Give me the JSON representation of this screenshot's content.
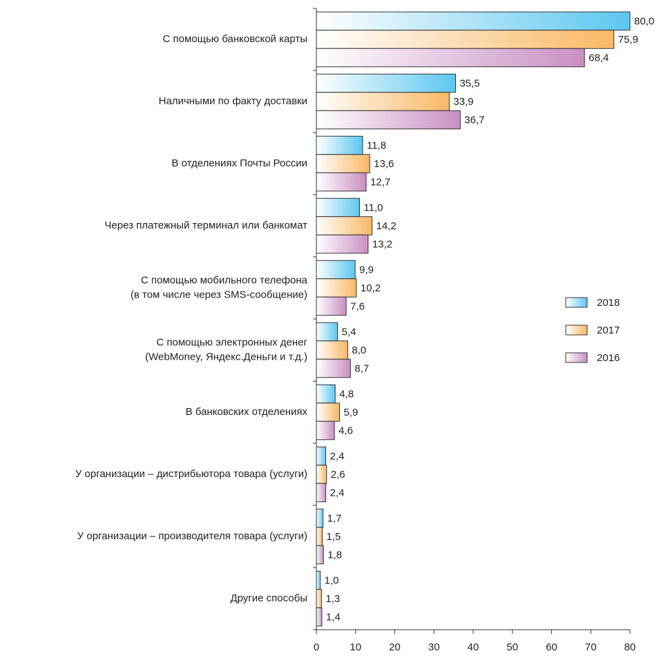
{
  "chart_data": {
    "type": "hbar",
    "categories": [
      [
        "С помощью банковской карты"
      ],
      [
        "Наличными по факту доставки"
      ],
      [
        "В отделениях  Почты России"
      ],
      [
        "Через платежный терминал или банкомат"
      ],
      [
        "С помощью мобильного телефона",
        "(в том числе через  SMS-сообщение)"
      ],
      [
        "С помощью электронных денег",
        "(WebMoney, Яндекс.Деньги и т.д.)"
      ],
      [
        "В банковских отделениях"
      ],
      [
        "У организации – дистрибьютора товара (услуги)"
      ],
      [
        "У организации – производителя  товара (услуги)"
      ],
      [
        "Другие способы"
      ]
    ],
    "series": [
      {
        "name": "2018",
        "color": "#5cc7f0",
        "values": [
          80.0,
          35.5,
          11.8,
          11.0,
          9.9,
          5.4,
          4.8,
          2.4,
          1.7,
          1.0
        ],
        "value_labels": [
          "80,0",
          "35,5",
          "11,8",
          "11,0",
          "9,9",
          "5,4",
          "4,8",
          "2,4",
          "1,7",
          "1,0"
        ]
      },
      {
        "name": "2017",
        "color": "#f9b865",
        "values": [
          75.9,
          33.9,
          13.6,
          14.2,
          10.2,
          8.0,
          5.9,
          2.6,
          1.5,
          1.3
        ],
        "value_labels": [
          "75,9",
          "33,9",
          "13,6",
          "14,2",
          "10,2",
          "8,0",
          "5,9",
          "2,6",
          "1,5",
          "1,3"
        ]
      },
      {
        "name": "2016",
        "color": "#c98fc2",
        "values": [
          68.4,
          36.7,
          12.7,
          13.2,
          7.6,
          8.7,
          4.6,
          2.4,
          1.8,
          1.4
        ],
        "value_labels": [
          "68,4",
          "36,7",
          "12,7",
          "13,2",
          "7,6",
          "8,7",
          "4,6",
          "2,4",
          "1,8",
          "1,4"
        ]
      }
    ],
    "xlim": [
      0,
      80
    ],
    "xticks": [
      0,
      10,
      20,
      30,
      40,
      50,
      60,
      70,
      80
    ],
    "legend": "right"
  }
}
